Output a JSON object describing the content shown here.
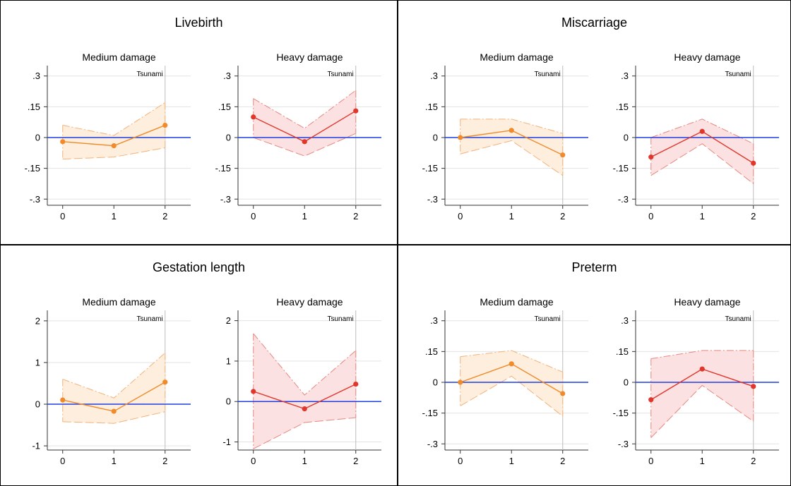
{
  "figure": {
    "event_label": "Tsunami",
    "event_x": 2,
    "colors": {
      "medium_line": "#f08a2a",
      "medium_band": "#fdeedd",
      "medium_dash": "#f3b27a",
      "heavy_line": "#e0362b",
      "heavy_band": "#fbe1e1",
      "heavy_dash": "#e8877f",
      "zero_line": "#1f3fe0",
      "grid": "#e3e3e3",
      "frame": "#000000"
    }
  },
  "chart_data": [
    {
      "title": "Livebirth",
      "subplots": [
        {
          "title": "Medium damage",
          "type": "line",
          "x": [
            0,
            1,
            2
          ],
          "y": [
            -0.02,
            -0.04,
            0.06
          ],
          "ci_lower": [
            -0.105,
            -0.095,
            -0.05
          ],
          "ci_upper": [
            0.06,
            0.01,
            0.17
          ],
          "yticks": [
            0.3,
            0.15,
            0,
            -0.15,
            -0.3
          ],
          "ytick_labels": [
            ".3",
            ".15",
            "0",
            "-.15",
            "-.3"
          ],
          "ylim": [
            -0.33,
            0.33
          ],
          "xticks": [
            0,
            1,
            2
          ],
          "xlim": [
            -0.3,
            2.5
          ]
        },
        {
          "title": "Heavy damage",
          "type": "line",
          "x": [
            0,
            1,
            2
          ],
          "y": [
            0.1,
            -0.02,
            0.13
          ],
          "ci_lower": [
            0.0,
            -0.09,
            0.02
          ],
          "ci_upper": [
            0.19,
            0.045,
            0.23
          ],
          "yticks": [
            0.3,
            0.15,
            0,
            -0.15,
            -0.3
          ],
          "ytick_labels": [
            ".3",
            ".15",
            "0",
            "-.15",
            "-.3"
          ],
          "ylim": [
            -0.33,
            0.33
          ],
          "xticks": [
            0,
            1,
            2
          ],
          "xlim": [
            -0.3,
            2.5
          ]
        }
      ]
    },
    {
      "title": "Miscarriage",
      "subplots": [
        {
          "title": "Medium damage",
          "type": "line",
          "x": [
            0,
            1,
            2
          ],
          "y": [
            0.0,
            0.035,
            -0.085
          ],
          "ci_lower": [
            -0.08,
            -0.015,
            -0.185
          ],
          "ci_upper": [
            0.09,
            0.09,
            0.02
          ],
          "yticks": [
            0.3,
            0.15,
            0,
            -0.15,
            -0.3
          ],
          "ytick_labels": [
            ".3",
            ".15",
            "0",
            "-.15",
            "-.3"
          ],
          "ylim": [
            -0.33,
            0.33
          ],
          "xticks": [
            0,
            1,
            2
          ],
          "xlim": [
            -0.3,
            2.5
          ]
        },
        {
          "title": "Heavy damage",
          "type": "line",
          "x": [
            0,
            1,
            2
          ],
          "y": [
            -0.095,
            0.03,
            -0.125
          ],
          "ci_lower": [
            -0.185,
            -0.03,
            -0.225
          ],
          "ci_upper": [
            0.0,
            0.09,
            -0.03
          ],
          "yticks": [
            0.3,
            0.15,
            0,
            -0.15,
            -0.3
          ],
          "ytick_labels": [
            ".3",
            ".15",
            "0",
            "-.15",
            "-.3"
          ],
          "ylim": [
            -0.33,
            0.33
          ],
          "xticks": [
            0,
            1,
            2
          ],
          "xlim": [
            -0.3,
            2.5
          ]
        }
      ]
    },
    {
      "title": "Gestation length",
      "subplots": [
        {
          "title": "Medium damage",
          "type": "line",
          "x": [
            0,
            1,
            2
          ],
          "y": [
            0.1,
            -0.17,
            0.53
          ],
          "ci_lower": [
            -0.42,
            -0.46,
            -0.18
          ],
          "ci_upper": [
            0.6,
            0.15,
            1.23
          ],
          "yticks": [
            2,
            1,
            0,
            -1
          ],
          "ytick_labels": [
            "2",
            "1",
            "0",
            "-1"
          ],
          "ylim": [
            -1.1,
            2.15
          ],
          "xticks": [
            0,
            1,
            2
          ],
          "xlim": [
            -0.3,
            2.5
          ]
        },
        {
          "title": "Heavy damage",
          "type": "line",
          "x": [
            0,
            1,
            2
          ],
          "y": [
            0.25,
            -0.18,
            0.43
          ],
          "ci_lower": [
            -1.17,
            -0.52,
            -0.4
          ],
          "ci_upper": [
            1.68,
            0.16,
            1.26
          ],
          "yticks": [
            2,
            1,
            0,
            -1
          ],
          "ytick_labels": [
            "2",
            "1",
            "0",
            "-1"
          ],
          "ylim": [
            -1.2,
            2.15
          ],
          "xticks": [
            0,
            1,
            2
          ],
          "xlim": [
            -0.3,
            2.5
          ]
        }
      ]
    },
    {
      "title": "Preterm",
      "subplots": [
        {
          "title": "Medium damage",
          "type": "line",
          "x": [
            0,
            1,
            2
          ],
          "y": [
            0.0,
            0.09,
            -0.055
          ],
          "ci_lower": [
            -0.115,
            0.03,
            -0.165
          ],
          "ci_upper": [
            0.125,
            0.155,
            0.05
          ],
          "yticks": [
            0.3,
            0.15,
            0,
            -0.15,
            -0.3
          ],
          "ytick_labels": [
            ".3",
            ".15",
            "0",
            "-.15",
            "-.3"
          ],
          "ylim": [
            -0.33,
            0.33
          ],
          "xticks": [
            0,
            1,
            2
          ],
          "xlim": [
            -0.3,
            2.5
          ]
        },
        {
          "title": "Heavy damage",
          "type": "line",
          "x": [
            0,
            1,
            2
          ],
          "y": [
            -0.085,
            0.065,
            -0.02
          ],
          "ci_lower": [
            -0.27,
            -0.015,
            -0.19
          ],
          "ci_upper": [
            0.115,
            0.155,
            0.155
          ],
          "yticks": [
            0.3,
            0.15,
            0,
            -0.15,
            -0.3
          ],
          "ytick_labels": [
            ".3",
            ".15",
            "0",
            "-.15",
            "-.3"
          ],
          "ylim": [
            -0.33,
            0.33
          ],
          "xticks": [
            0,
            1,
            2
          ],
          "xlim": [
            -0.3,
            2.5
          ]
        }
      ]
    }
  ]
}
